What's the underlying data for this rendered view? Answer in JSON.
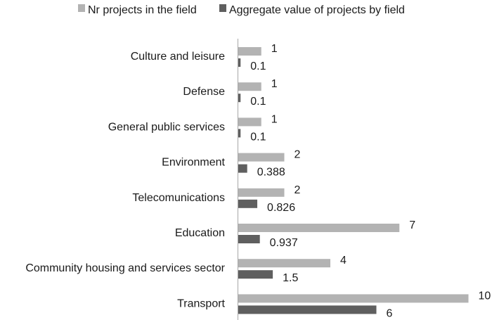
{
  "chart_data": {
    "type": "bar",
    "orientation": "horizontal",
    "title": "",
    "xlabel": "",
    "ylabel": "",
    "xlim": [
      0,
      10
    ],
    "grid": false,
    "legend_position": "top",
    "categories": [
      "Culture and leisure",
      "Defense",
      "General public services",
      "Environment",
      "Telecomunications",
      "Education",
      "Community housing and services sector",
      "Transport"
    ],
    "series": [
      {
        "name": "Nr projects in the field",
        "color": "#b3b3b3",
        "values": [
          1,
          1,
          1,
          2,
          2,
          7,
          4,
          10
        ],
        "labels": [
          "1",
          "1",
          "1",
          "2",
          "2",
          "7",
          "4",
          "10"
        ]
      },
      {
        "name": "Aggregate value of projects by field",
        "color": "#5f5f5f",
        "values": [
          0.1,
          0.1,
          0.1,
          0.388,
          0.826,
          0.937,
          1.5,
          6
        ],
        "labels": [
          "0.1",
          "0.1",
          "0.1",
          "0.388",
          "0.826",
          "0.937",
          "1.5",
          "6"
        ]
      }
    ]
  }
}
